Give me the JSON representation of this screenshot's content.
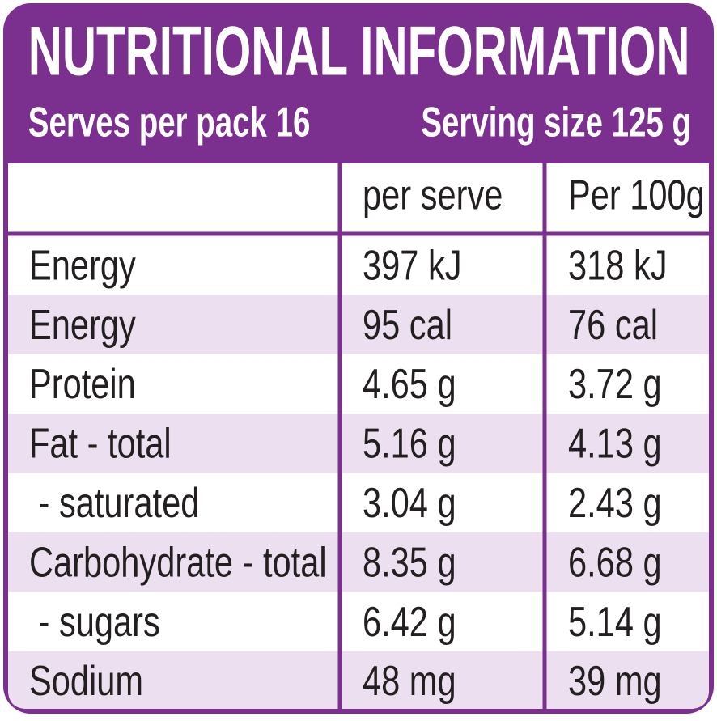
{
  "header": {
    "title": "NUTRITIONAL INFORMATION",
    "serves": "Serves per pack 16",
    "serving_size": "Serving size 125 g"
  },
  "table": {
    "columns": [
      "per serve",
      "Per 100g"
    ],
    "rows": [
      [
        "Energy",
        "397 kJ",
        "318 kJ"
      ],
      [
        "Energy",
        "95 cal",
        "76 cal"
      ],
      [
        "Protein",
        "4.65 g",
        "3.72 g"
      ],
      [
        "Fat - total",
        "5.16 g",
        "4.13 g"
      ],
      [
        " - saturated",
        "3.04 g",
        "2.43 g"
      ],
      [
        "Carbohydrate - total",
        "8.35 g",
        "6.68 g"
      ],
      [
        " - sugars",
        "6.42 g",
        "5.14 g"
      ],
      [
        "Sodium",
        "48 mg",
        "39 mg"
      ]
    ]
  }
}
